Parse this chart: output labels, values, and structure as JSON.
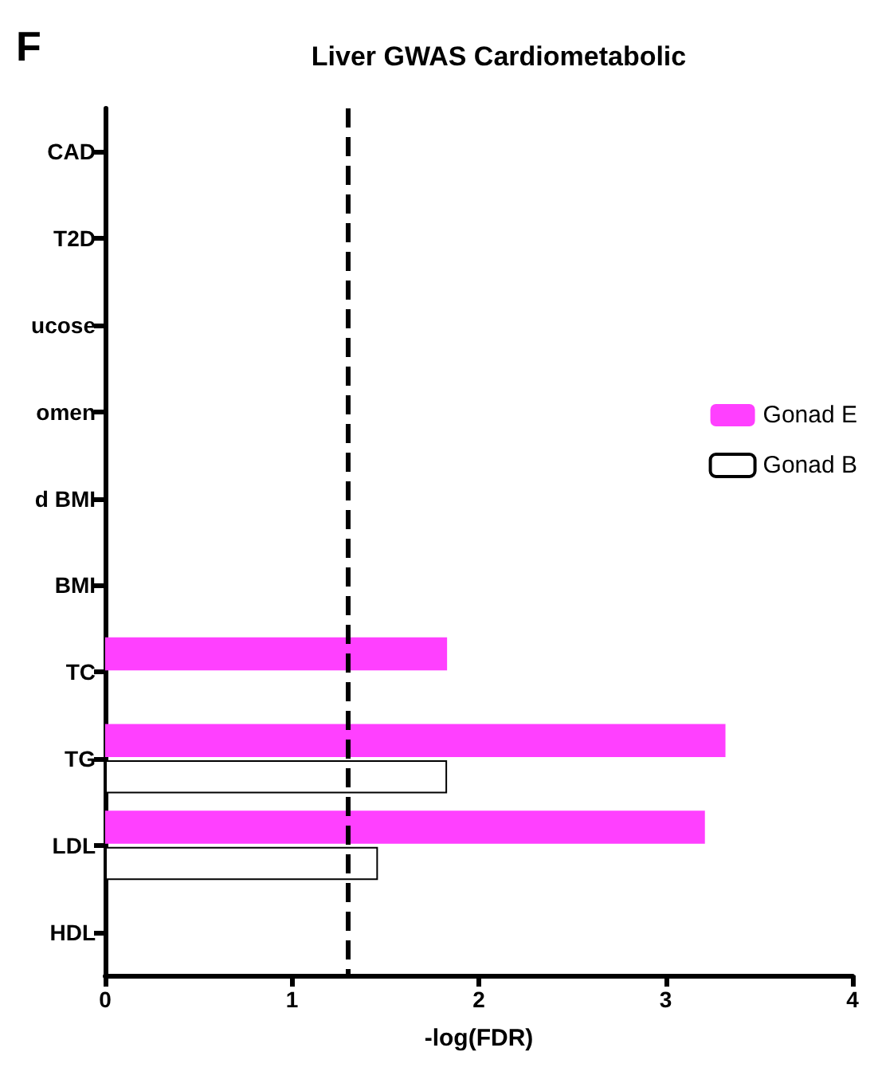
{
  "chart_data": {
    "type": "bar",
    "orientation": "horizontal",
    "title": "Liver GWAS Cardiometabolic",
    "xlabel": "-log(FDR)",
    "annotations": [
      "F"
    ],
    "categories": [
      "CAD",
      "T2D",
      "ucose",
      "omen",
      "d BMI",
      "BMI",
      "TC",
      "TG",
      "LDL",
      "HDL"
    ],
    "series": [
      {
        "name": "Gonad E",
        "color": "#ff40ff",
        "values": [
          null,
          null,
          null,
          null,
          null,
          null,
          1.83,
          3.32,
          3.21,
          null
        ]
      },
      {
        "name": "Gonad B",
        "color": "#ffffff",
        "values": [
          null,
          null,
          null,
          null,
          null,
          null,
          null,
          1.83,
          1.46,
          null
        ]
      }
    ],
    "xlim": [
      0,
      4
    ],
    "xticks": [
      0,
      1,
      2,
      3,
      4
    ],
    "grid": false,
    "legend": "right",
    "ref_lines": [
      {
        "axis": "x",
        "value": 1.3,
        "color": "#000000",
        "line_style": "dashed"
      }
    ]
  }
}
